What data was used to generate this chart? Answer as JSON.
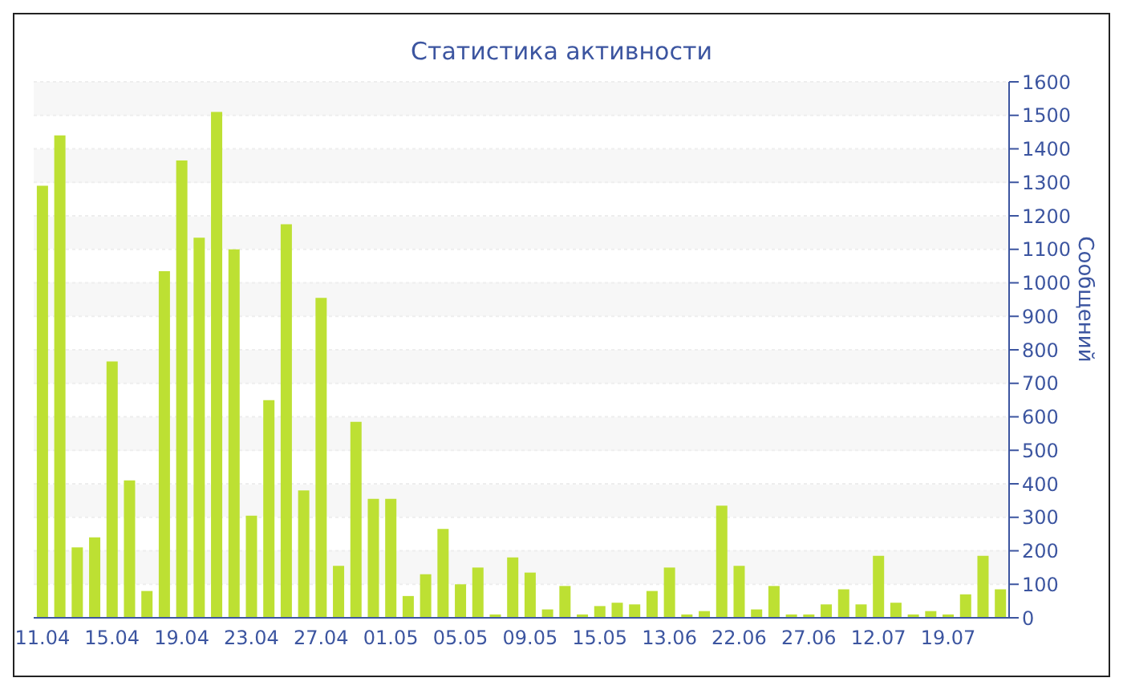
{
  "chart_data": {
    "type": "bar",
    "title": "Статистика активности",
    "ylabel": "Сообщений",
    "categories": [
      "11.04",
      null,
      null,
      null,
      "15.04",
      null,
      null,
      null,
      "19.04",
      null,
      null,
      null,
      "23.04",
      null,
      null,
      null,
      "27.04",
      null,
      null,
      null,
      "01.05",
      null,
      null,
      null,
      "05.05",
      null,
      null,
      null,
      "09.05",
      null,
      null,
      null,
      "15.05",
      null,
      null,
      null,
      "13.06",
      null,
      null,
      null,
      "22.06",
      null,
      null,
      null,
      "27.06",
      null,
      null,
      null,
      "12.07",
      null,
      null,
      null,
      "19.07",
      null,
      null,
      null
    ],
    "values": [
      1290,
      1440,
      210,
      240,
      765,
      410,
      80,
      1035,
      1365,
      1135,
      1510,
      1100,
      305,
      650,
      1175,
      380,
      955,
      155,
      585,
      355,
      355,
      65,
      130,
      265,
      100,
      150,
      10,
      180,
      135,
      25,
      95,
      10,
      35,
      45,
      40,
      80,
      150,
      10,
      20,
      335,
      155,
      25,
      95,
      10,
      10,
      40,
      85,
      40,
      185,
      45,
      10,
      20,
      10,
      70,
      185,
      85
    ],
    "color": "#bde033",
    "ylim": [
      0,
      1600
    ],
    "yticks": [
      0,
      100,
      200,
      300,
      400,
      500,
      600,
      700,
      800,
      900,
      1000,
      1100,
      1200,
      1300,
      1400,
      1500,
      1600
    ],
    "grid": "y"
  }
}
